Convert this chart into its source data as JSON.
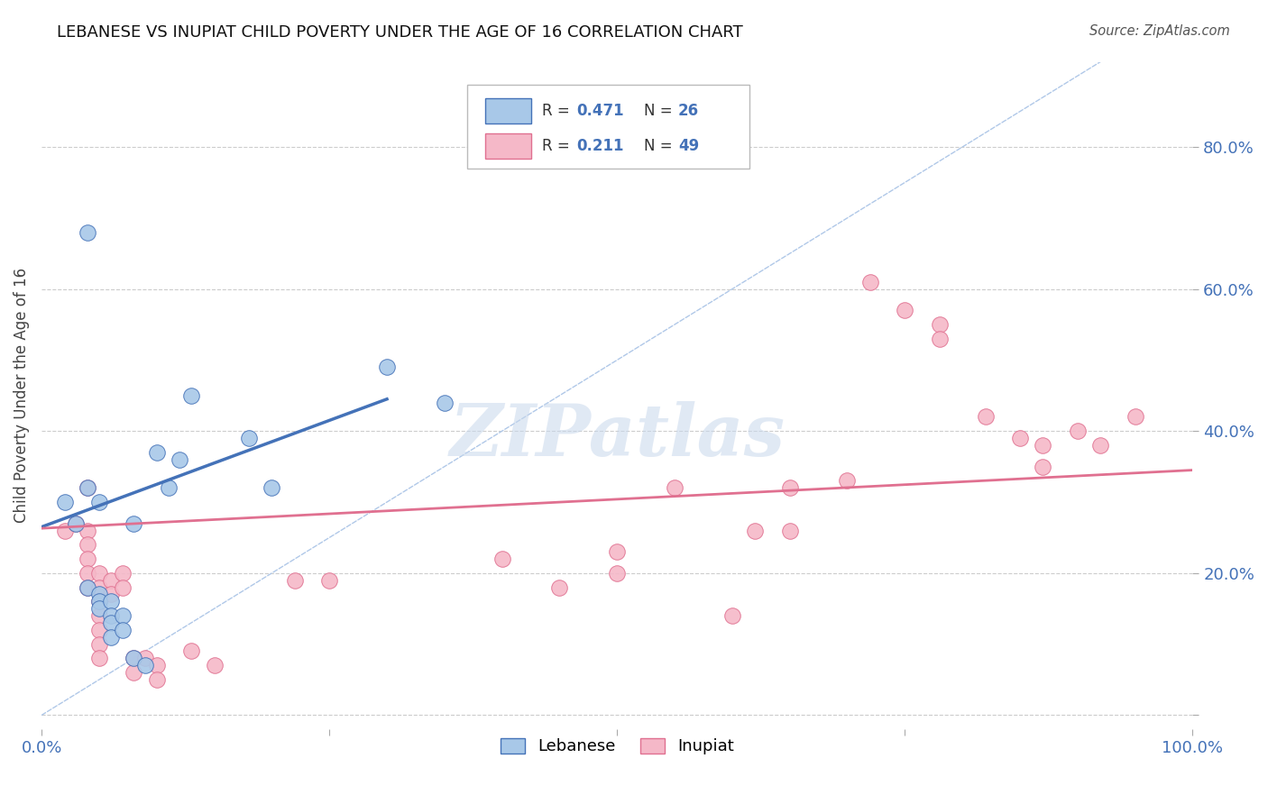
{
  "title": "LEBANESE VS INUPIAT CHILD POVERTY UNDER THE AGE OF 16 CORRELATION CHART",
  "source": "Source: ZipAtlas.com",
  "ylabel": "Child Poverty Under the Age of 16",
  "xlim": [
    0.0,
    1.0
  ],
  "ylim": [
    -0.02,
    0.92
  ],
  "xticks": [
    0.0,
    0.25,
    0.5,
    0.75,
    1.0
  ],
  "xtick_labels": [
    "0.0%",
    "",
    "",
    "",
    "100.0%"
  ],
  "yticks": [
    0.0,
    0.2,
    0.4,
    0.6,
    0.8
  ],
  "ytick_labels": [
    "",
    "20.0%",
    "40.0%",
    "60.0%",
    "80.0%"
  ],
  "legend_labels": [
    "Lebanese",
    "Inupiat"
  ],
  "blue_color": "#a8c8e8",
  "pink_color": "#f5b8c8",
  "blue_line_color": "#4472b8",
  "pink_line_color": "#e07090",
  "diagonal_color": "#b0c8e8",
  "watermark": "ZIPatlas",
  "lebanese_points": [
    [
      0.04,
      0.68
    ],
    [
      0.02,
      0.3
    ],
    [
      0.03,
      0.27
    ],
    [
      0.04,
      0.32
    ],
    [
      0.05,
      0.3
    ],
    [
      0.04,
      0.18
    ],
    [
      0.05,
      0.17
    ],
    [
      0.05,
      0.16
    ],
    [
      0.05,
      0.15
    ],
    [
      0.06,
      0.16
    ],
    [
      0.06,
      0.14
    ],
    [
      0.06,
      0.13
    ],
    [
      0.06,
      0.11
    ],
    [
      0.07,
      0.14
    ],
    [
      0.07,
      0.12
    ],
    [
      0.08,
      0.27
    ],
    [
      0.08,
      0.08
    ],
    [
      0.09,
      0.07
    ],
    [
      0.1,
      0.37
    ],
    [
      0.11,
      0.32
    ],
    [
      0.12,
      0.36
    ],
    [
      0.13,
      0.45
    ],
    [
      0.18,
      0.39
    ],
    [
      0.2,
      0.32
    ],
    [
      0.3,
      0.49
    ],
    [
      0.35,
      0.44
    ]
  ],
  "inupiat_points": [
    [
      0.02,
      0.26
    ],
    [
      0.03,
      0.27
    ],
    [
      0.04,
      0.32
    ],
    [
      0.04,
      0.26
    ],
    [
      0.04,
      0.24
    ],
    [
      0.04,
      0.22
    ],
    [
      0.04,
      0.2
    ],
    [
      0.04,
      0.18
    ],
    [
      0.05,
      0.2
    ],
    [
      0.05,
      0.18
    ],
    [
      0.05,
      0.16
    ],
    [
      0.05,
      0.14
    ],
    [
      0.05,
      0.12
    ],
    [
      0.05,
      0.1
    ],
    [
      0.05,
      0.08
    ],
    [
      0.06,
      0.19
    ],
    [
      0.06,
      0.17
    ],
    [
      0.07,
      0.2
    ],
    [
      0.07,
      0.18
    ],
    [
      0.08,
      0.08
    ],
    [
      0.08,
      0.06
    ],
    [
      0.09,
      0.08
    ],
    [
      0.1,
      0.07
    ],
    [
      0.1,
      0.05
    ],
    [
      0.13,
      0.09
    ],
    [
      0.15,
      0.07
    ],
    [
      0.22,
      0.19
    ],
    [
      0.25,
      0.19
    ],
    [
      0.4,
      0.22
    ],
    [
      0.45,
      0.18
    ],
    [
      0.5,
      0.23
    ],
    [
      0.5,
      0.2
    ],
    [
      0.55,
      0.32
    ],
    [
      0.6,
      0.14
    ],
    [
      0.62,
      0.26
    ],
    [
      0.65,
      0.26
    ],
    [
      0.65,
      0.32
    ],
    [
      0.7,
      0.33
    ],
    [
      0.72,
      0.61
    ],
    [
      0.75,
      0.57
    ],
    [
      0.78,
      0.55
    ],
    [
      0.78,
      0.53
    ],
    [
      0.82,
      0.42
    ],
    [
      0.85,
      0.39
    ],
    [
      0.87,
      0.38
    ],
    [
      0.87,
      0.35
    ],
    [
      0.9,
      0.4
    ],
    [
      0.92,
      0.38
    ],
    [
      0.95,
      0.42
    ]
  ],
  "blue_trendline_x": [
    0.0,
    0.3
  ],
  "blue_trendline_y": [
    0.265,
    0.445
  ],
  "pink_trendline_x": [
    0.0,
    1.0
  ],
  "pink_trendline_y": [
    0.263,
    0.345
  ]
}
